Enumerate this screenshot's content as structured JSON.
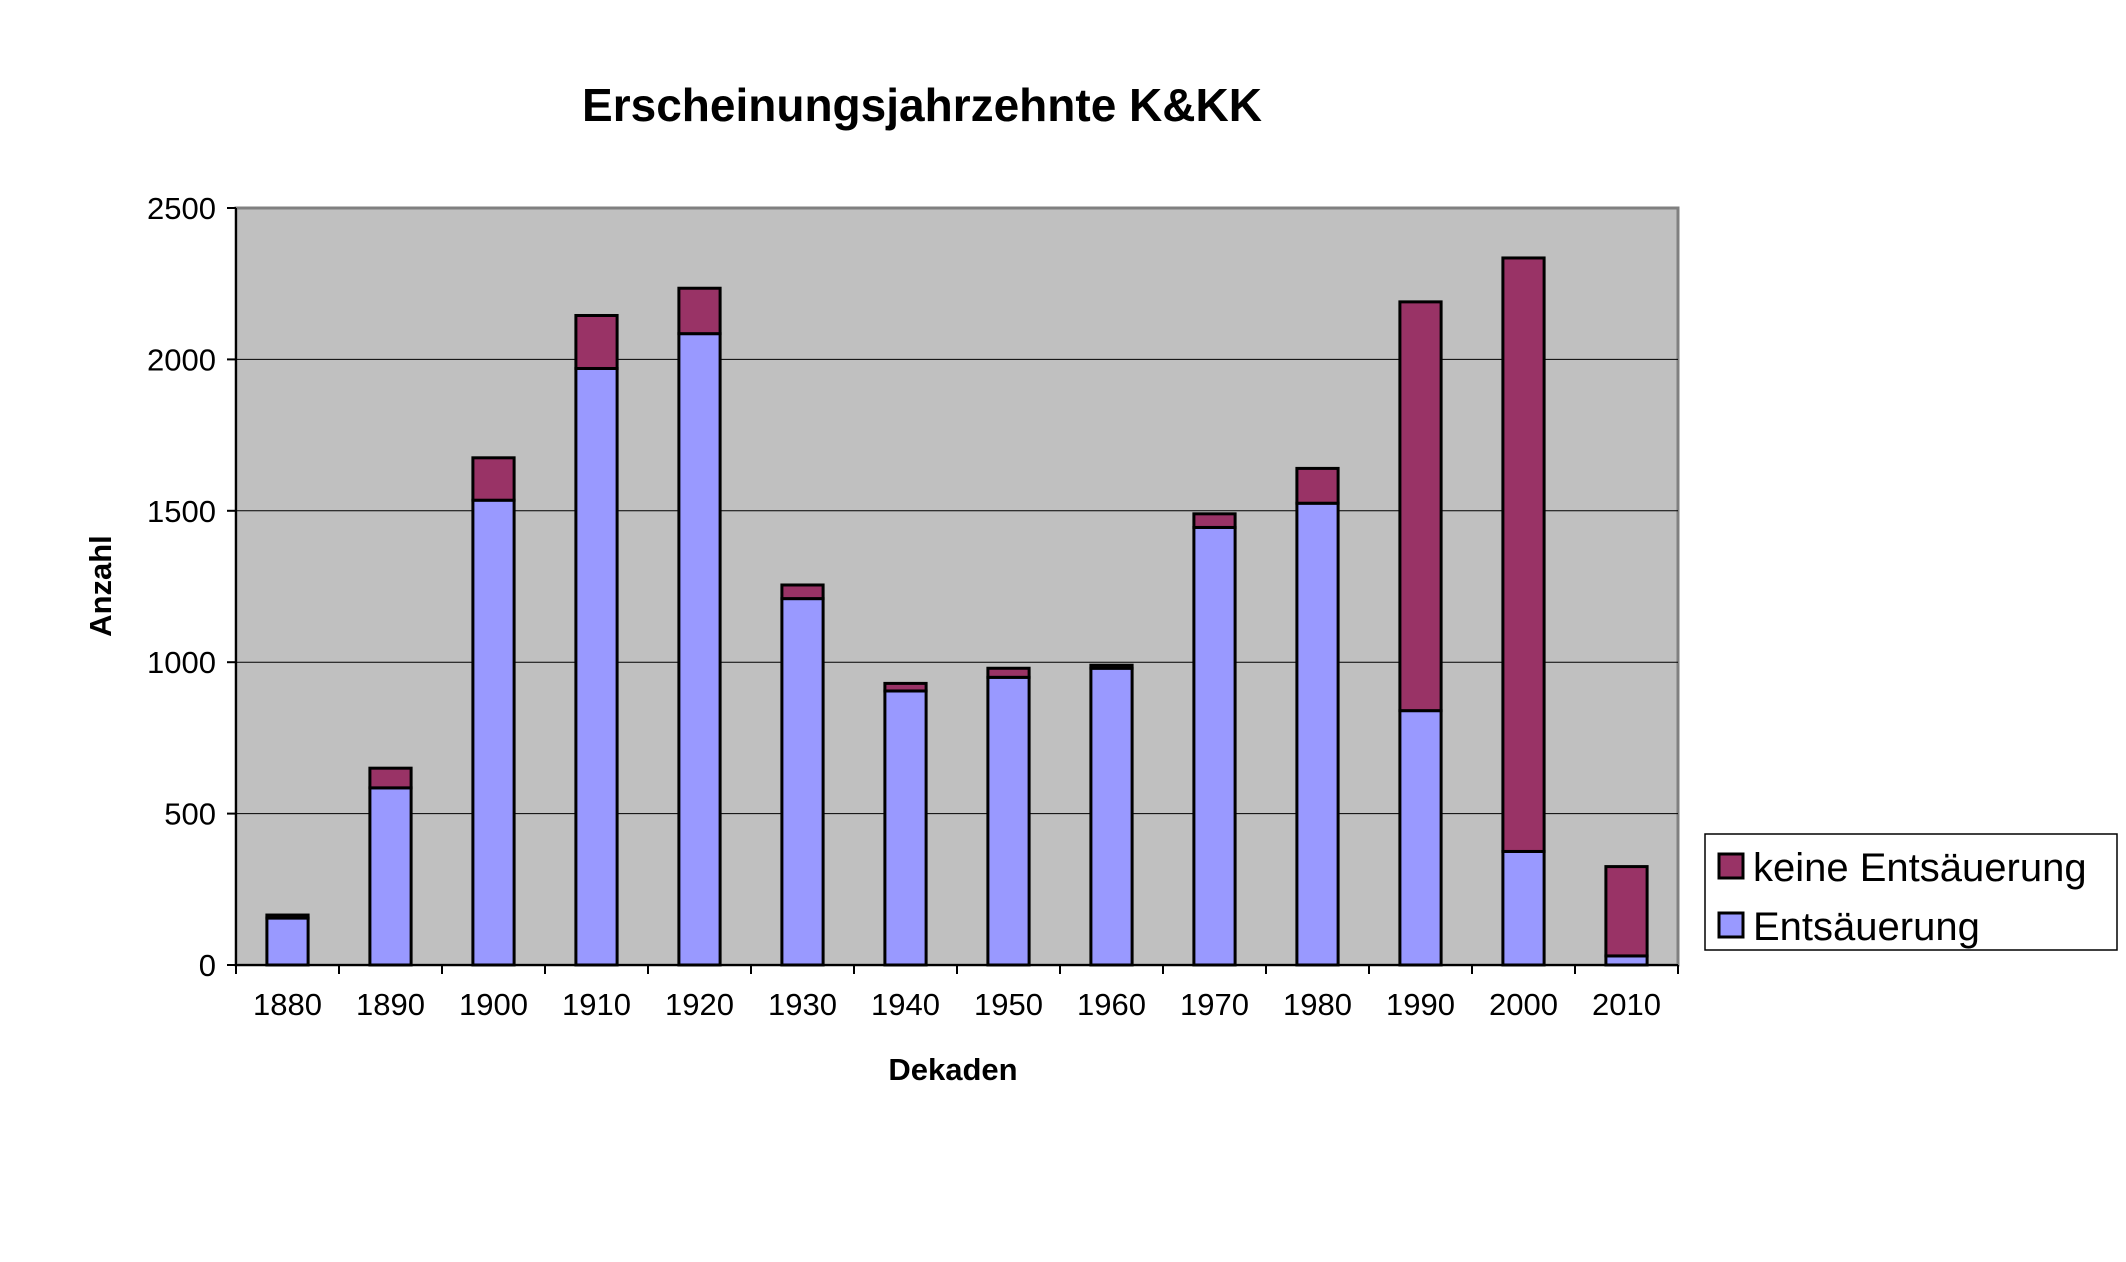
{
  "chart_data": {
    "type": "bar",
    "stacked": true,
    "title": "Erscheinungsjahrzehnte K&KK",
    "xlabel": "Dekaden",
    "ylabel": "Anzahl",
    "ylim": [
      0,
      2500
    ],
    "yticks": [
      "0",
      "500",
      "1000",
      "1500",
      "2000",
      "2500"
    ],
    "grid": true,
    "legend_position": "right",
    "categories": [
      "1880",
      "1890",
      "1900",
      "1910",
      "1920",
      "1930",
      "1940",
      "1950",
      "1960",
      "1970",
      "1980",
      "1990",
      "2000",
      "2010"
    ],
    "series": [
      {
        "name": "Entsäuerung",
        "color": "#9999ff",
        "values": [
          155,
          585,
          1535,
          1970,
          2085,
          1210,
          905,
          950,
          980,
          1445,
          1525,
          840,
          375,
          30
        ]
      },
      {
        "name": "keine Entsäuerung",
        "color": "#993366",
        "values": [
          10,
          65,
          140,
          175,
          150,
          45,
          25,
          30,
          10,
          45,
          115,
          1350,
          1960,
          295
        ]
      }
    ],
    "legend": [
      "keine Entsäuerung",
      "Entsäuerung"
    ],
    "plot_background": "#c0c0c0"
  }
}
